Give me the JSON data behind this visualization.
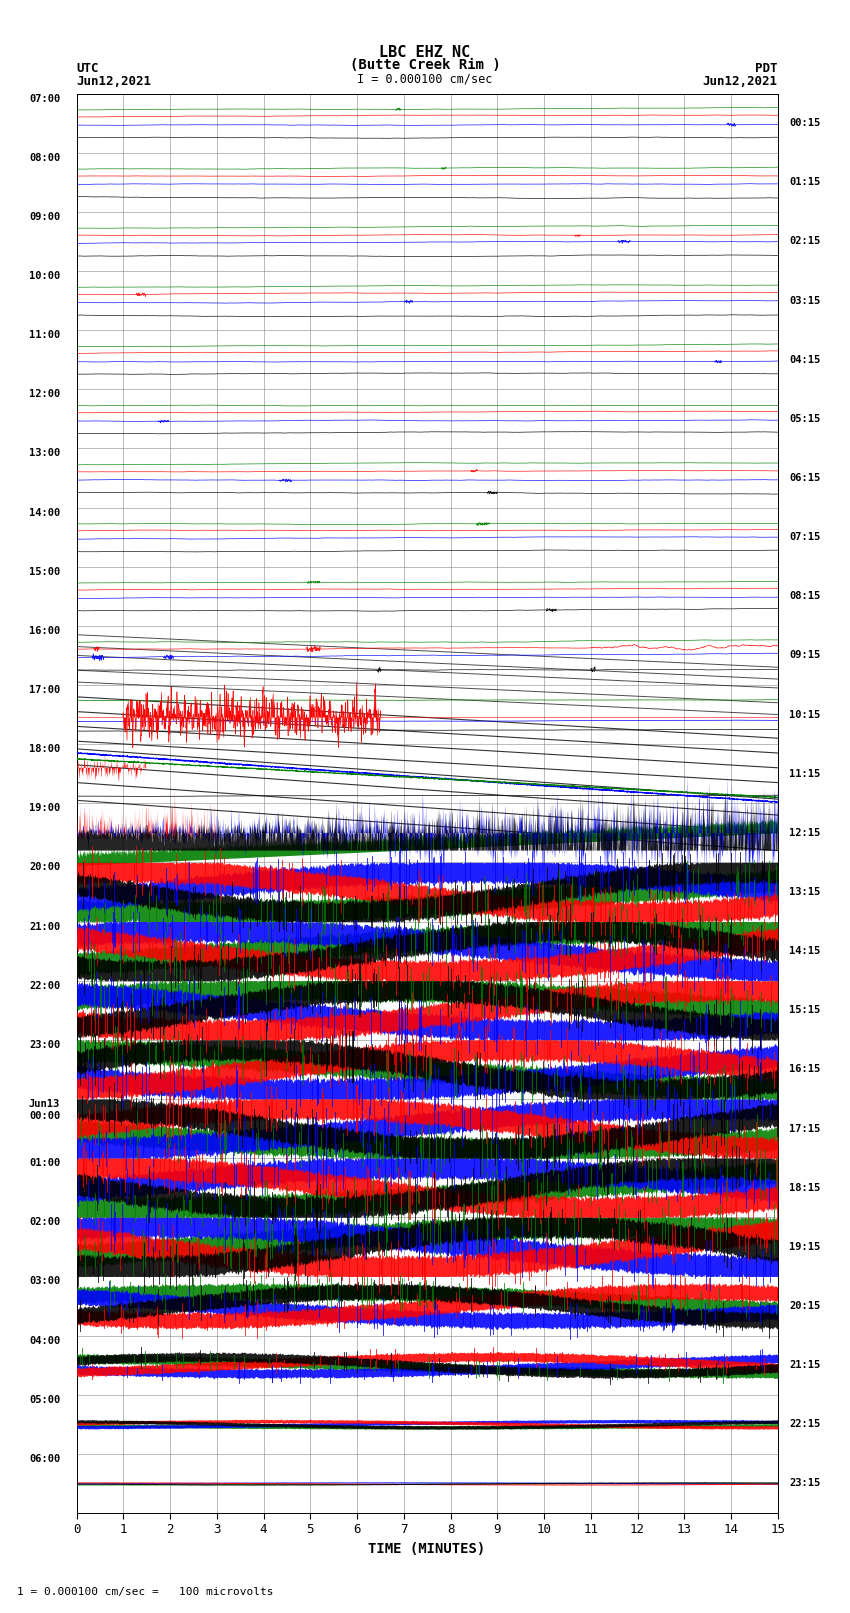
{
  "title_line1": "LBC EHZ NC",
  "title_line2": "(Butte Creek Rim )",
  "title_line3": "I = 0.000100 cm/sec",
  "left_header_line1": "UTC",
  "left_header_line2": "Jun12,2021",
  "right_header_line1": "PDT",
  "right_header_line2": "Jun12,2021",
  "xlabel": "TIME (MINUTES)",
  "footer": "1 = 0.000100 cm/sec =   100 microvolts",
  "utc_labels": [
    "07:00",
    "08:00",
    "09:00",
    "10:00",
    "11:00",
    "12:00",
    "13:00",
    "14:00",
    "15:00",
    "16:00",
    "17:00",
    "18:00",
    "19:00",
    "20:00",
    "21:00",
    "22:00",
    "23:00",
    "Jun13\n00:00",
    "01:00",
    "02:00",
    "03:00",
    "04:00",
    "05:00",
    "06:00"
  ],
  "pdt_labels": [
    "00:15",
    "01:15",
    "02:15",
    "03:15",
    "04:15",
    "05:15",
    "06:15",
    "07:15",
    "08:15",
    "09:15",
    "10:15",
    "11:15",
    "12:15",
    "13:15",
    "14:15",
    "15:15",
    "16:15",
    "17:15",
    "18:15",
    "19:15",
    "20:15",
    "21:15",
    "22:15",
    "23:15"
  ],
  "n_rows": 24,
  "n_minutes": 15,
  "bg_color": "white",
  "col_black": "#000000",
  "col_red": "#ff0000",
  "col_blue": "#0000ff",
  "col_green": "#008000",
  "xmin": 0,
  "xmax": 15,
  "xticks": [
    0,
    1,
    2,
    3,
    4,
    5,
    6,
    7,
    8,
    9,
    10,
    11,
    12,
    13,
    14,
    15
  ]
}
